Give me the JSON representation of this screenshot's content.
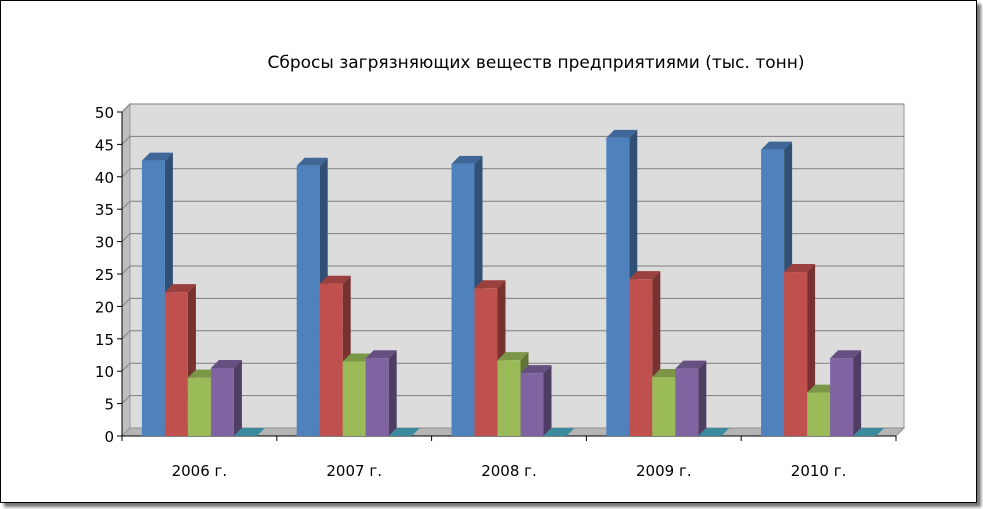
{
  "chart_data": {
    "type": "bar",
    "title": "Сбросы загрязняющих веществ предприятиями (тыс. тонн)",
    "categories": [
      "2006 г.",
      "2007 г.",
      "2008 г.",
      "2009 г.",
      "2010 г."
    ],
    "series": [
      {
        "color": "#4F81BD",
        "values": [
          42.5,
          41.7,
          42.0,
          46.0,
          44.2
        ]
      },
      {
        "color": "#C0504D",
        "values": [
          22.2,
          23.5,
          22.8,
          24.2,
          25.3
        ]
      },
      {
        "color": "#9BBB59",
        "values": [
          9.0,
          11.5,
          11.7,
          9.1,
          6.7
        ]
      },
      {
        "color": "#8064A2",
        "values": [
          10.5,
          12.0,
          9.7,
          10.4,
          12.0
        ]
      },
      {
        "color": "#4BACC6",
        "values": [
          0,
          0,
          0,
          0,
          0
        ]
      }
    ],
    "yticks": [
      0,
      5,
      10,
      15,
      20,
      25,
      30,
      35,
      40,
      45,
      50
    ],
    "ylim": [
      0,
      50
    ],
    "grid": true,
    "legend": "none"
  }
}
